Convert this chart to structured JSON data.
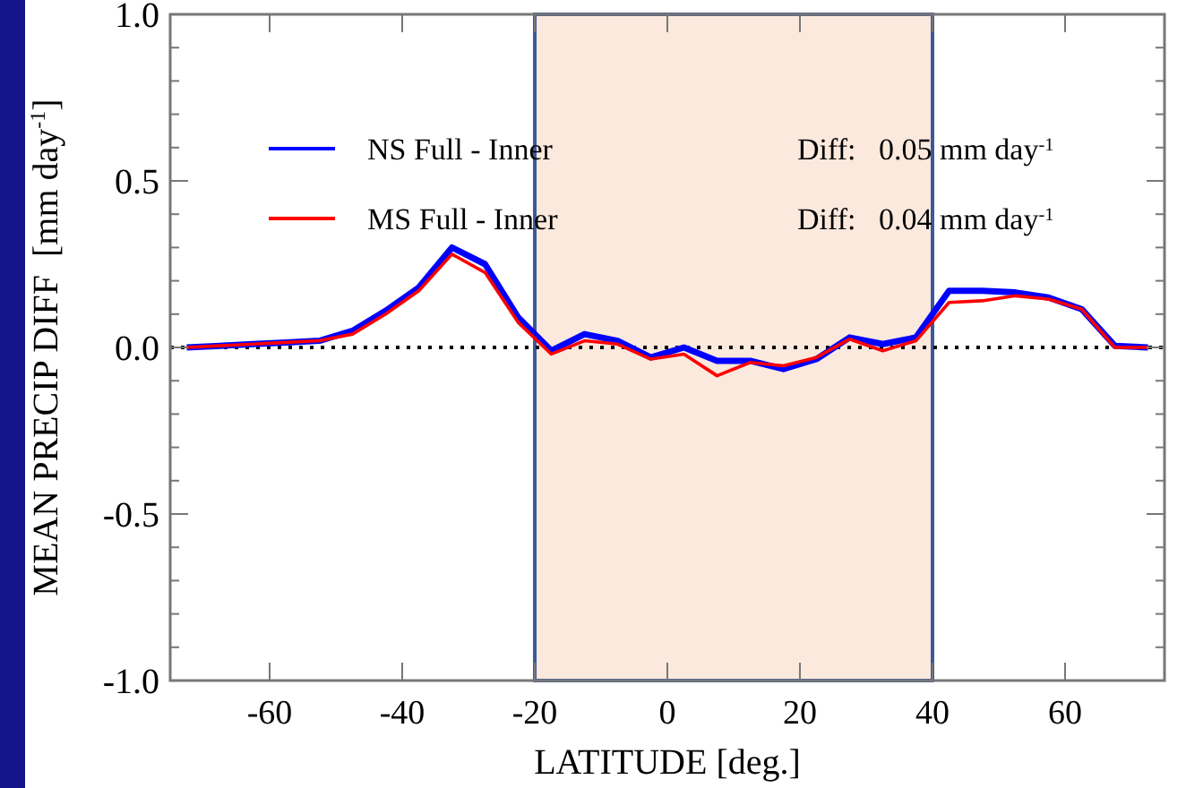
{
  "chart_data": {
    "type": "line",
    "xlabel": "LATITUDE [deg.]",
    "ylabel": "MEAN PRECIP DIFF  [mm day$^{-1}$]",
    "x": [
      -72.5,
      -67.5,
      -62.5,
      -57.5,
      -52.5,
      -47.5,
      -42.5,
      -37.5,
      -32.5,
      -27.5,
      -22.5,
      -17.5,
      -12.5,
      -7.5,
      -2.5,
      2.5,
      7.5,
      12.5,
      17.5,
      22.5,
      27.5,
      32.5,
      37.5,
      42.5,
      47.5,
      52.5,
      57.5,
      62.5,
      67.5,
      72.5
    ],
    "series": [
      {
        "name": "NS Full - Inner",
        "color": "#0000ff",
        "values": [
          0,
          0.005,
          0.01,
          0.015,
          0.02,
          0.05,
          0.11,
          0.18,
          0.3,
          0.25,
          0.09,
          -0.01,
          0.04,
          0.02,
          -0.03,
          0,
          -0.04,
          -0.04,
          -0.065,
          -0.035,
          0.03,
          0.01,
          0.03,
          0.17,
          0.17,
          0.165,
          0.15,
          0.115,
          0.005,
          0
        ]
      },
      {
        "name": "MS Full - Inner",
        "color": "#ff0000",
        "values": [
          0,
          0.005,
          0.01,
          0.015,
          0.02,
          0.04,
          0.1,
          0.17,
          0.28,
          0.225,
          0.075,
          -0.02,
          0.02,
          0.01,
          -0.035,
          -0.02,
          -0.085,
          -0.045,
          -0.055,
          -0.03,
          0.025,
          -0.01,
          0.02,
          0.135,
          0.14,
          0.155,
          0.145,
          0.115,
          0,
          0
        ]
      }
    ],
    "xlim": [
      -75,
      75
    ],
    "xticks": [
      -60,
      -40,
      -20,
      0,
      20,
      40,
      60
    ],
    "ylim": [
      -1,
      1
    ],
    "yticks": [
      {
        "value": -1,
        "label": "-1.0"
      },
      {
        "value": -0.9,
        "label": null
      },
      {
        "value": -0.8,
        "label": null
      },
      {
        "value": -0.7,
        "label": null
      },
      {
        "value": -0.6,
        "label": null
      },
      {
        "value": -0.5,
        "label": "-0.5"
      },
      {
        "value": -0.4,
        "label": null
      },
      {
        "value": -0.3,
        "label": null
      },
      {
        "value": -0.2,
        "label": null
      },
      {
        "value": -0.1,
        "label": null
      },
      {
        "value": 0,
        "label": "0.0"
      },
      {
        "value": 0.1,
        "label": null
      },
      {
        "value": 0.2,
        "label": null
      },
      {
        "value": 0.3,
        "label": null
      },
      {
        "value": 0.4,
        "label": null
      },
      {
        "value": 0.5,
        "label": "0.5"
      },
      {
        "value": 0.6,
        "label": null
      },
      {
        "value": 0.7,
        "label": null
      },
      {
        "value": 0.8,
        "label": null
      },
      {
        "value": 0.9,
        "label": null
      },
      {
        "value": 1,
        "label": "1.0"
      }
    ],
    "bands": [
      {
        "axis": "x",
        "from": -20,
        "to": 40,
        "color": "#fce9de"
      }
    ],
    "ref_lines": [
      {
        "axis": "y",
        "value": 0,
        "color": "#000000",
        "line_style": "dotted"
      }
    ],
    "annotations": [
      "Diff:   0.05 mm day$^{-1}$",
      "Diff:   0.04 mm day$^{-1}$"
    ],
    "legend": "top left",
    "grid": false,
    "marker": "none",
    "line_style": "solid"
  }
}
